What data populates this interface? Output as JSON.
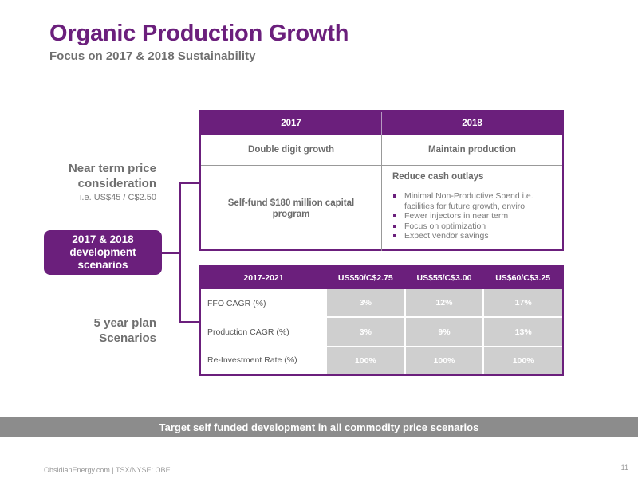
{
  "header": {
    "title": "Organic Production Growth",
    "subtitle": "Focus on 2017 & 2018 Sustainability"
  },
  "left": {
    "near_term_line1": "Near term price",
    "near_term_line2": "consideration",
    "near_term_sub": "i.e. US$45 / C$2.50",
    "pill_line1": "2017 & 2018",
    "pill_line2": "development",
    "pill_line3": "scenarios",
    "five_year_line1": "5 year plan",
    "five_year_line2": "Scenarios"
  },
  "top_table": {
    "col1_header": "2017",
    "col2_header": "2018",
    "row2_col1": "Double digit growth",
    "row2_col2": "Maintain production",
    "row3_col1": "Self-fund $180 million capital program",
    "row3_col2_head": "Reduce cash outlays",
    "bullets": [
      "Minimal Non-Productive Spend i.e. facilities for future growth, enviro",
      "Fewer injectors in near term",
      "Focus on optimization",
      "Expect vendor savings"
    ]
  },
  "bottom_table": {
    "headers": [
      "2017-2021",
      "US$50/C$2.75",
      "US$55/C$3.00",
      "US$60/C$3.25"
    ],
    "rows": [
      {
        "label": "FFO CAGR (%)",
        "values": [
          "3%",
          "12%",
          "17%"
        ]
      },
      {
        "label": "Production CAGR (%)",
        "values": [
          "3%",
          "9%",
          "13%"
        ]
      },
      {
        "label": "Re-Investment Rate (%)",
        "values": [
          "100%",
          "100%",
          "100%"
        ]
      }
    ]
  },
  "banner": "Target self funded development in all commodity price scenarios",
  "footer": {
    "text": "ObsidianEnergy.com | TSX/NYSE: OBE",
    "page": "11"
  },
  "colors": {
    "brand_purple": "#6b1f7c",
    "text_grey": "#6f6f6f",
    "banner_grey": "#8c8c8c",
    "cell_grey": "#cfcfcf"
  }
}
